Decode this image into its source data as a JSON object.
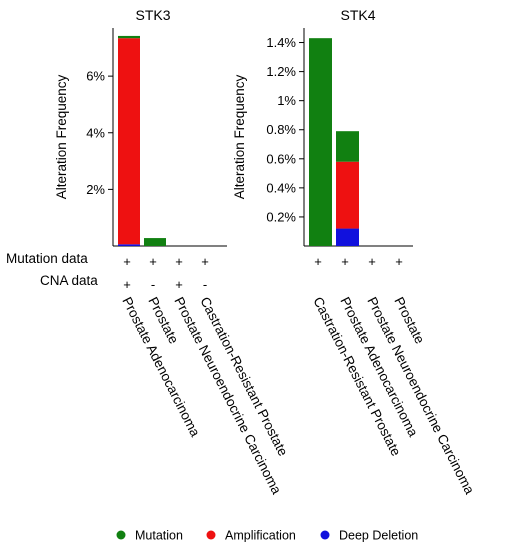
{
  "row_labels": {
    "mutation": "Mutation data",
    "cna": "CNA data"
  },
  "legend": [
    {
      "label": "Mutation",
      "color": "#118011"
    },
    {
      "label": "Amplification",
      "color": "#ee1111"
    },
    {
      "label": "Deep Deletion",
      "color": "#1111dd"
    }
  ],
  "chart_data": [
    {
      "type": "bar",
      "stacked": true,
      "title": "STK3",
      "ylabel": "Alteration Frequency",
      "ylim": [
        0,
        7.7
      ],
      "yticks": [
        2,
        4,
        6
      ],
      "ytick_labels": [
        "2%",
        "4%",
        "6%"
      ],
      "categories": [
        "Prostate Adenocarcinoma",
        "Prostate",
        "Prostate Neuroendocrine Carcinoma",
        "Castration-Resistant Prostate"
      ],
      "mutation_data": [
        "+",
        "+",
        "+",
        "+"
      ],
      "cna_data": [
        "+",
        "-",
        "+",
        "-"
      ],
      "series": [
        {
          "name": "Deep Deletion",
          "color": "#1111dd",
          "values": [
            0.06,
            0,
            0,
            0
          ]
        },
        {
          "name": "Amplification",
          "color": "#ee1111",
          "values": [
            7.28,
            0,
            0,
            0
          ]
        },
        {
          "name": "Mutation",
          "color": "#118011",
          "values": [
            0.08,
            0.28,
            0,
            0
          ]
        }
      ]
    },
    {
      "type": "bar",
      "stacked": true,
      "title": "STK4",
      "ylabel": "Alteration Frequency",
      "ylim": [
        0,
        1.5
      ],
      "yticks": [
        0.2,
        0.4,
        0.6,
        0.8,
        1.0,
        1.2,
        1.4
      ],
      "ytick_labels": [
        "0.2%",
        "0.4%",
        "0.6%",
        "0.8%",
        "1%",
        "1.2%",
        "1.4%"
      ],
      "categories": [
        "Castration-Resistant Prostate",
        "Prostate Adenocarcinoma",
        "Prostate Neuroendocrine Carcinoma",
        "Prostate"
      ],
      "mutation_data": [
        "+",
        "+",
        "+",
        "+"
      ],
      "cna_data": [
        "",
        "",
        "",
        ""
      ],
      "series": [
        {
          "name": "Deep Deletion",
          "color": "#1111dd",
          "values": [
            0,
            0.12,
            0,
            0
          ]
        },
        {
          "name": "Amplification",
          "color": "#ee1111",
          "values": [
            0,
            0.46,
            0,
            0
          ]
        },
        {
          "name": "Mutation",
          "color": "#118011",
          "values": [
            1.43,
            0.21,
            0,
            0
          ]
        }
      ]
    }
  ]
}
